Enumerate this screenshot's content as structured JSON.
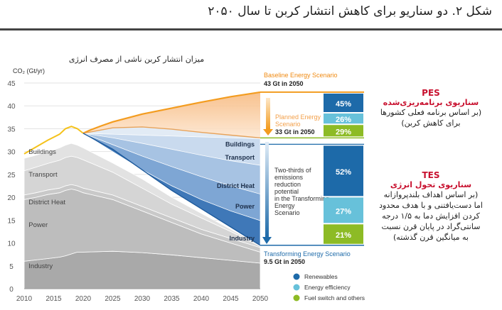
{
  "figure_title": "شکل ۲. دو سناریو برای کاهش انتشار کربن تا سال ۲۰۵۰",
  "annotations": {
    "pes": {
      "code": "PES",
      "name": "سناریوی برنامه‌ریزی‌شده",
      "desc": [
        "(بر اساس برنامه فعلی کشورها",
        "برای کاهش کربن)"
      ]
    },
    "tes": {
      "code": "TES",
      "name": "سناریوی تحول انرژی",
      "desc": [
        "(بر اساس اهداف بلندپروازانه",
        "اما دست‌یافتنی  و با هدف محدود",
        "کردن افزایش دما به ۱/۵ درجه",
        "سانتی‌گراد در پایان قرن نسبت",
        "به میانگین قرن گذشته)"
      ]
    }
  },
  "colors": {
    "baseline": "#f39c1f",
    "history": "#f5c21b",
    "planned_fill": "#f9c896",
    "transform_fill": "#1f5fa3",
    "renewables": "#1d6aa9",
    "efficiency": "#67c1da",
    "fuel_switch": "#8dbb25"
  },
  "chart_data": {
    "type": "area",
    "chart_title": "میزان انتشار کربن ناشی از مصرف انرژی",
    "ylabel": "CO₂ (Gt/yr)",
    "xlim": [
      2010,
      2050
    ],
    "ylim": [
      0,
      45
    ],
    "xticks": [
      2010,
      2015,
      2020,
      2025,
      2030,
      2035,
      2040,
      2045,
      2050
    ],
    "yticks": [
      0,
      5,
      10,
      15,
      20,
      25,
      30,
      35,
      40,
      45
    ],
    "history": {
      "x": [
        2010,
        2012,
        2014,
        2016,
        2017,
        2018,
        2019,
        2020
      ],
      "y": [
        29.5,
        31.0,
        32.5,
        33.8,
        35.0,
        35.5,
        35.0,
        34.0
      ]
    },
    "baseline": {
      "label": "Baseline Energy Scenario",
      "value_label": "43 Gt in 2050",
      "x": [
        2020,
        2021,
        2023,
        2025,
        2030,
        2035,
        2040,
        2045,
        2050
      ],
      "y": [
        34.0,
        34.6,
        35.6,
        36.5,
        38.2,
        39.5,
        40.8,
        42.0,
        43.0
      ]
    },
    "planned": {
      "label": "Planned Energy Scenario",
      "value_label": "33 Gt in 2050",
      "x": [
        2020,
        2025,
        2030,
        2035,
        2040,
        2045,
        2050
      ],
      "y": [
        34.0,
        35.2,
        35.4,
        34.9,
        34.2,
        33.6,
        33.0
      ]
    },
    "transforming": {
      "label": "Transforming Energy Scenario",
      "value_label": "9.5 Gt in 2050",
      "x": [
        2020,
        2025,
        2030,
        2035,
        2040,
        2045,
        2050
      ],
      "y": [
        34.0,
        30.5,
        26.0,
        21.5,
        17.5,
        13.5,
        9.5
      ]
    },
    "tes_sectors": {
      "x": [
        2020,
        2025,
        2030,
        2035,
        2040,
        2045,
        2050
      ],
      "lines": [
        {
          "name": "Buildings",
          "y": [
            34.0,
            33.8,
            33.6,
            33.4,
            33.2,
            33.0,
            32.8
          ]
        },
        {
          "name": "Transport",
          "y": [
            34.0,
            33.0,
            31.8,
            30.5,
            29.2,
            28.0,
            27.0
          ]
        },
        {
          "name": "District Heat",
          "y": [
            34.0,
            31.5,
            29.0,
            26.7,
            24.5,
            22.5,
            20.7
          ]
        },
        {
          "name": "Power",
          "y": [
            34.0,
            30.0,
            26.0,
            22.5,
            19.5,
            17.0,
            14.9
          ]
        },
        {
          "name": "Industry",
          "y": [
            34.0,
            30.5,
            26.0,
            21.5,
            17.5,
            13.5,
            9.5
          ]
        }
      ]
    },
    "emission_stack": {
      "x": [
        2010,
        2012,
        2014,
        2016,
        2017,
        2018,
        2019,
        2020,
        2025,
        2030,
        2035,
        2040,
        2045,
        2050
      ],
      "layers": [
        {
          "name": "Industry",
          "top": [
            6.0,
            6.3,
            6.6,
            6.9,
            7.2,
            7.6,
            8.0,
            8.0,
            8.2,
            7.9,
            7.4,
            6.8,
            6.2,
            5.6
          ]
        },
        {
          "name": "Power",
          "top": [
            19.5,
            20.0,
            20.6,
            21.0,
            21.5,
            21.8,
            21.5,
            21.0,
            19.5,
            17.0,
            14.5,
            12.0,
            10.0,
            8.0
          ]
        },
        {
          "name": "District Heat",
          "top": [
            20.5,
            21.0,
            21.6,
            22.0,
            22.5,
            22.8,
            22.5,
            22.0,
            20.5,
            18.0,
            15.5,
            13.0,
            11.0,
            9.0
          ]
        },
        {
          "name": "Transport",
          "top": [
            25.8,
            26.6,
            27.4,
            28.1,
            28.7,
            29.0,
            28.7,
            28.2,
            25.5,
            22.0,
            18.5,
            15.5,
            12.5,
            9.3
          ]
        },
        {
          "name": "Buildings",
          "top": [
            28.5,
            29.2,
            30.0,
            30.8,
            31.4,
            31.8,
            31.4,
            30.8,
            27.5,
            24.0,
            20.0,
            16.5,
            13.0,
            9.5
          ]
        }
      ],
      "label_positions": [
        {
          "name": "Buildings",
          "x": 2011,
          "y": 29.5
        },
        {
          "name": "Transport",
          "x": 2011,
          "y": 24.5
        },
        {
          "name": "District Heat",
          "x": 2011,
          "y": 18.5
        },
        {
          "name": "Power",
          "x": 2011,
          "y": 13.5
        },
        {
          "name": "Industry",
          "x": 2011,
          "y": 4.5
        }
      ]
    },
    "annotation": "Two-thirds of emissions reduction potential in the Transforming Energy Scenario",
    "pes_bar": [
      {
        "name": "Renewables",
        "percent": 45
      },
      {
        "name": "Energy efficiency",
        "percent": 26
      },
      {
        "name": "Fuel switch and others",
        "percent": 29
      }
    ],
    "tes_bar": [
      {
        "name": "Renewables",
        "percent": 52
      },
      {
        "name": "Energy efficiency",
        "percent": 27
      },
      {
        "name": "Fuel switch and others",
        "percent": 21
      }
    ],
    "legend": [
      {
        "name": "Renewables",
        "color": "#1d6aa9"
      },
      {
        "name": "Energy efficiency",
        "color": "#67c1da"
      },
      {
        "name": "Fuel switch and others",
        "color": "#8dbb25"
      }
    ]
  }
}
